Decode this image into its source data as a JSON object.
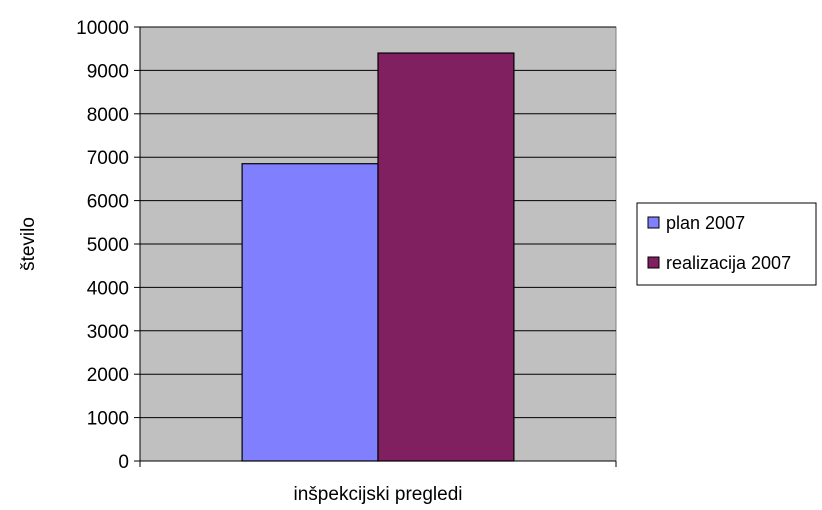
{
  "chart_data": {
    "type": "bar",
    "categories": [
      "inšpekcijski pregledi"
    ],
    "series": [
      {
        "name": "plan 2007",
        "values": [
          6850
        ],
        "color": "#8080ff"
      },
      {
        "name": "realizacija 2007",
        "values": [
          9400
        ],
        "color": "#812061"
      }
    ],
    "xlabel": "inšpekcijski pregledi",
    "ylabel": "število",
    "ylim": [
      0,
      10000
    ],
    "yticks": [
      0,
      1000,
      2000,
      3000,
      4000,
      5000,
      6000,
      7000,
      8000,
      9000,
      10000
    ],
    "grid": true,
    "legend_position": "right",
    "plot_background": "#c0c0c0"
  }
}
